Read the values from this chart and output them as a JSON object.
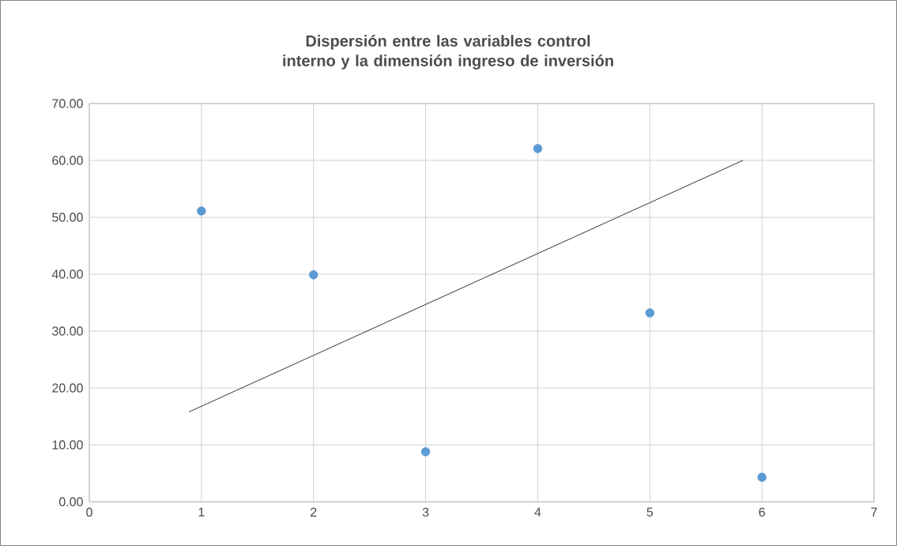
{
  "chart_data": {
    "type": "scatter",
    "title": "Dispersión entre las variables control interno y la dimensión ingreso de inversión",
    "x": [
      1,
      2,
      3,
      4,
      5,
      6
    ],
    "series": [
      {
        "color": "#5b9bd5",
        "marker": "circle",
        "values": [
          51.1,
          39.9,
          8.8,
          62.1,
          33.2,
          4.3
        ]
      },
      {
        "type": "line",
        "marker": "none",
        "color": "#000000",
        "x": [
          0.89,
          5.83
        ],
        "values": [
          15.8,
          60.0
        ]
      }
    ],
    "xlim": [
      0,
      7
    ],
    "xticks": [
      0,
      1,
      2,
      3,
      4,
      5,
      6,
      7
    ],
    "ylim": [
      0,
      70
    ],
    "yticks": [
      {
        "value": 0,
        "label": "0.00"
      },
      {
        "value": 10,
        "label": "10.00"
      },
      {
        "value": 20,
        "label": "20.00"
      },
      {
        "value": 30,
        "label": "30.00"
      },
      {
        "value": 40,
        "label": "40.00"
      },
      {
        "value": 50,
        "label": "50.00"
      },
      {
        "value": 60,
        "label": "60.00"
      },
      {
        "value": 70,
        "label": "70.00"
      }
    ],
    "grid": true
  }
}
